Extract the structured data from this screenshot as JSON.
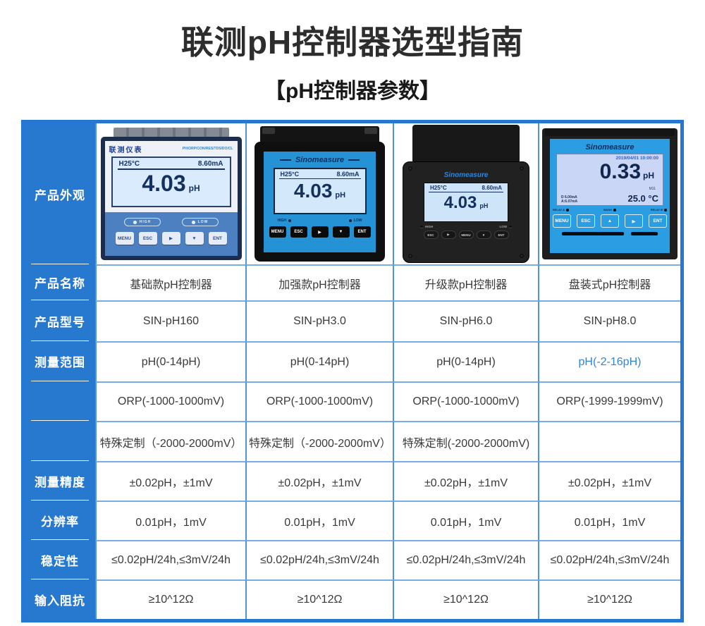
{
  "page": {
    "title": "联测pH控制器选型指南",
    "subtitle": "【pH控制器参数】"
  },
  "labels": {
    "appearance": "产品外观",
    "name": "产品名称",
    "model": "产品型号",
    "range": "测量范围",
    "accuracy": "测量精度",
    "resolution": "分辨率",
    "stability": "稳定性",
    "impedance": "输入阻抗"
  },
  "products": [
    {
      "name": "基础款pH控制器",
      "model": "SIN-pH160",
      "ph_range": "pH(0-14pH)",
      "orp_range": "ORP(-1000-1000mV)",
      "custom_range": "特殊定制（-2000-2000mV）",
      "accuracy": "±0.02pH，±1mV",
      "resolution": "0.01pH，1mV",
      "stability": "≤0.02pH/24h,≤3mV/24h",
      "impedance": "≥10^12Ω"
    },
    {
      "name": "加强款pH控制器",
      "model": "SIN-pH3.0",
      "ph_range": "pH(0-14pH)",
      "orp_range": "ORP(-1000-1000mV)",
      "custom_range": "特殊定制（-2000-2000mV）",
      "accuracy": "±0.02pH，±1mV",
      "resolution": "0.01pH，1mV",
      "stability": "≤0.02pH/24h,≤3mV/24h",
      "impedance": "≥10^12Ω"
    },
    {
      "name": "升级款pH控制器",
      "model": "SIN-pH6.0",
      "ph_range": "pH(0-14pH)",
      "orp_range": "ORP(-1000-1000mV)",
      "custom_range": "特殊定制(-2000-2000mV)",
      "accuracy": "±0.02pH，±1mV",
      "resolution": "0.01pH，1mV",
      "stability": "≤0.02pH/24h,≤3mV/24h",
      "impedance": "≥10^12Ω"
    },
    {
      "name": "盘装式pH控制器",
      "model": "SIN-pH8.0",
      "ph_range": "pH(-2-16pH)",
      "orp_range": "ORP(-1999-1999mV)",
      "custom_range": "",
      "accuracy": "±0.02pH，±1mV",
      "resolution": "0.01pH，1mV",
      "stability": "≤0.02pH/24h,≤3mV/24h",
      "impedance": "≥10^12Ω"
    }
  ],
  "devices": {
    "d1": {
      "brand": "联测仪表",
      "params": "PH/ORP/CON/RES/TDS/DO/CL",
      "temp": "H25°C",
      "current": "8.60mA",
      "value": "4.03",
      "unit": "pH",
      "high": "HIGH",
      "low": "LOW",
      "btn_menu": "MENU",
      "btn_esc": "ESC",
      "btn_right": "▶",
      "btn_down": "▼",
      "btn_ent": "ENT"
    },
    "d2": {
      "brand": "Sinomeasure",
      "temp": "H25°C",
      "current": "8.60mA",
      "value": "4.03",
      "unit": "pH",
      "high": "HIGH",
      "low": "LOW",
      "btn_menu": "MENU",
      "btn_esc": "ESC",
      "btn_right": "▶",
      "btn_down": "▼",
      "btn_ent": "ENT"
    },
    "d3": {
      "brand": "Sinomeasure",
      "temp": "H25°C",
      "current": "8.60mA",
      "value": "4.03",
      "unit": "pH",
      "high": "HIGH",
      "low": "LOW",
      "btn_esc": "ESC",
      "btn_right": "▶",
      "btn_menu": "MENU",
      "btn_down": "▼",
      "btn_ent": "ENT"
    },
    "d4": {
      "brand": "Sinomeasure",
      "datetime": "2019/04/01 10:00:00",
      "value": "0.33",
      "unit": "pH",
      "m11": "M11",
      "out1": "D 6.00mA",
      "out2": "A:6.07mA",
      "temp": "25.0 °C",
      "relay_a": "RELAY A",
      "wash": "WASH",
      "relay_b": "RELAY B",
      "btn_menu": "MENU",
      "btn_esc": "ESC",
      "btn_up": "▲",
      "btn_right": "▶",
      "btn_ent": "ENT"
    }
  },
  "colors": {
    "accent_blue": "#2679CF",
    "range_highlight": "#2E86D8"
  }
}
